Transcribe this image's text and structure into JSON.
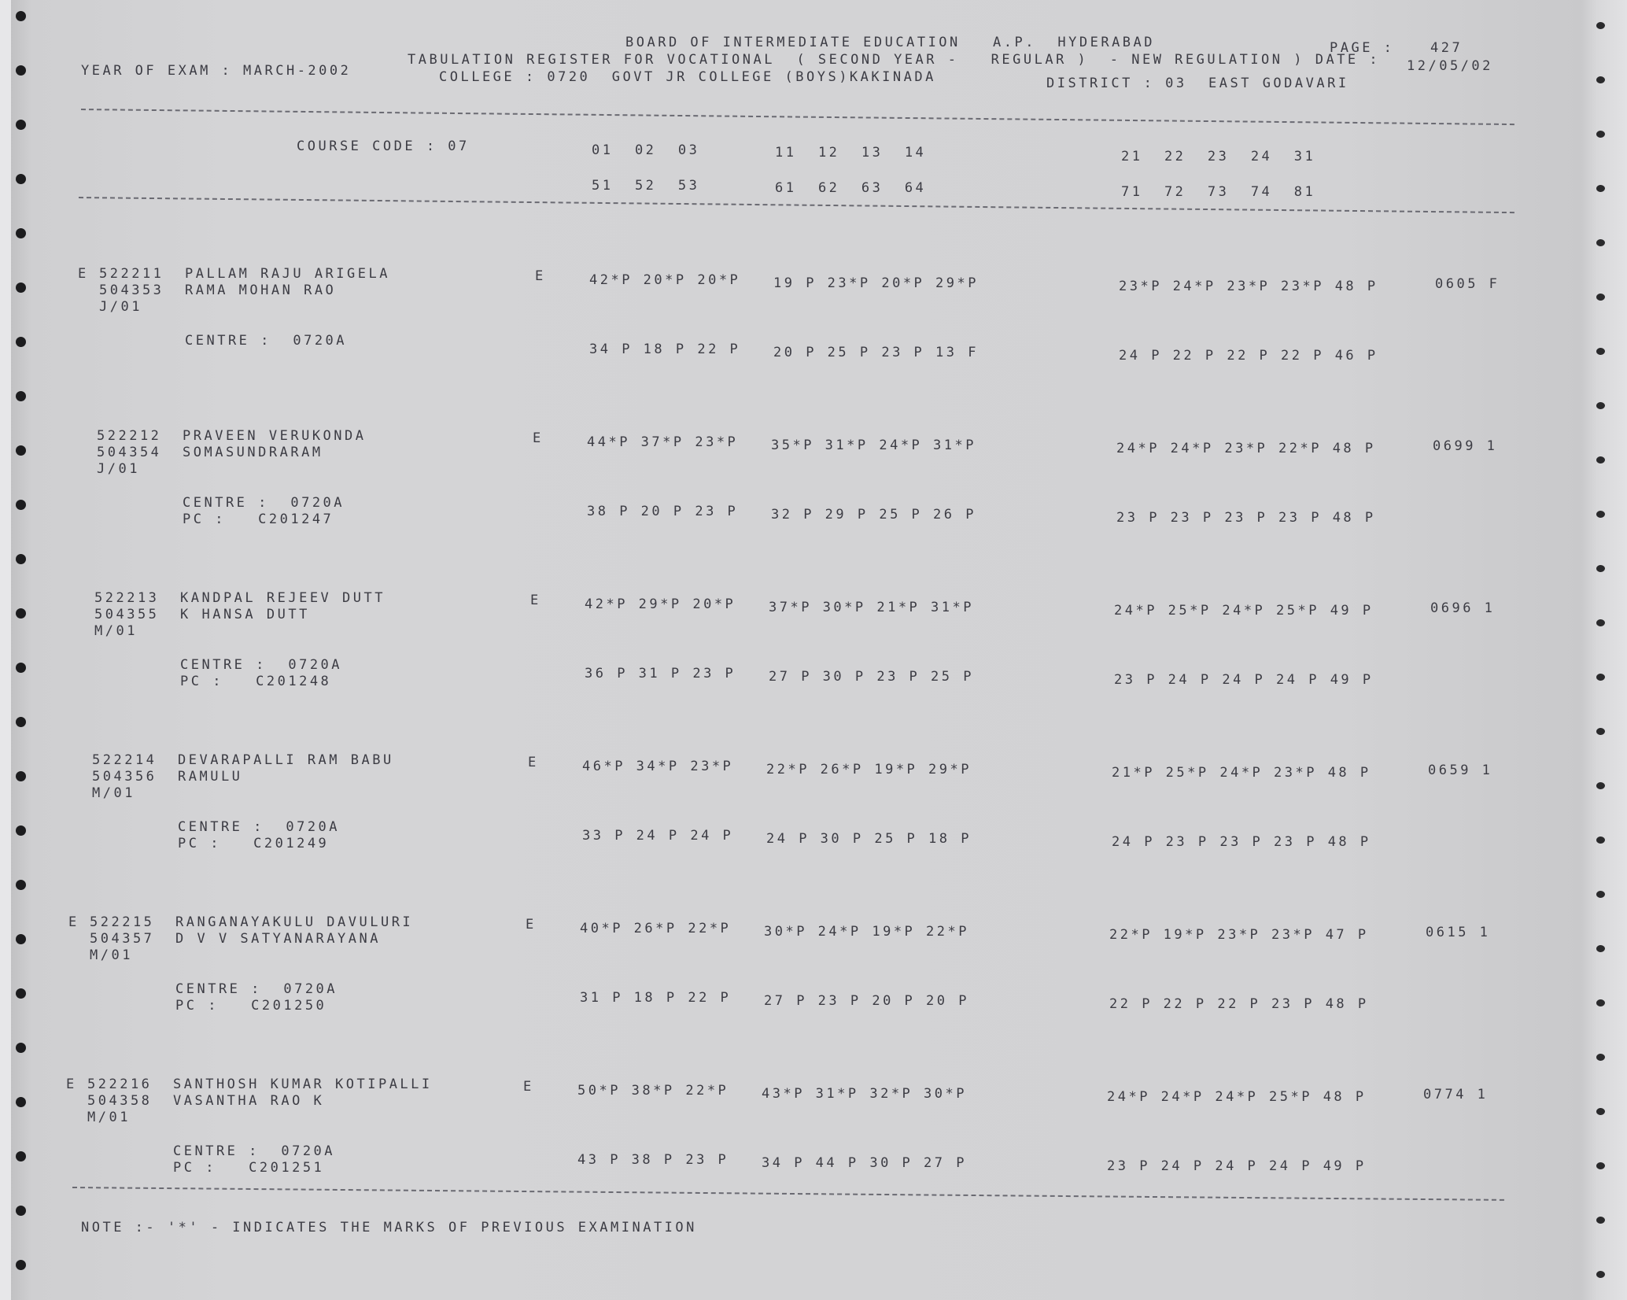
{
  "header": {
    "board": "BOARD OF INTERMEDIATE EDUCATION   A.P.  HYDERABAD",
    "page_label": "PAGE :",
    "page_number": "427",
    "register": "TABULATION REGISTER FOR VOCATIONAL  ( SECOND YEAR -   REGULAR )  - NEW REGULATION ) DATE :",
    "date": "12/05/02",
    "year_of_exam": "YEAR OF EXAM : MARCH-2002",
    "college": "COLLEGE : 0720  GOVT JR COLLEGE (BOYS)KAKINADA",
    "district": "DISTRICT : 03  EAST GODAVARI"
  },
  "columns": {
    "course_code": "COURSE CODE : 07",
    "row1": [
      "01  02  03",
      "11  12  13  14",
      "21  22  23  24  31"
    ],
    "row2": [
      "51  52  53",
      "61  62  63  64",
      "71  72  73  74  81"
    ]
  },
  "records": [
    {
      "flag": "E",
      "roll": "522211",
      "name": "PALLAM RAJU ARIGELA",
      "reg": "504353",
      "father": "RAMA MOHAN RAO",
      "group": "J/01",
      "centre": "CENTRE :  0720A",
      "pc": "",
      "medium": "E",
      "r1": [
        "42*P 20*P 20*P",
        "19 P 23*P 20*P 29*P",
        "23*P 24*P 23*P 23*P 48 P"
      ],
      "r2": [
        "34 P 18 P 22 P",
        "20 P 25 P 23 P 13 F",
        "24 P 22 P 22 P 22 P 46 P"
      ],
      "total": "0605 F"
    },
    {
      "flag": "",
      "roll": "522212",
      "name": "PRAVEEN VERUKONDA",
      "reg": "504354",
      "father": "SOMASUNDRARAM",
      "group": "J/01",
      "centre": "CENTRE :  0720A",
      "pc": "PC :   C201247",
      "medium": "E",
      "r1": [
        "44*P 37*P 23*P",
        "35*P 31*P 24*P 31*P",
        "24*P 24*P 23*P 22*P 48 P"
      ],
      "r2": [
        "38 P 20 P 23 P",
        "32 P 29 P 25 P 26 P",
        "23 P 23 P 23 P 23 P 48 P"
      ],
      "total": "0699 1"
    },
    {
      "flag": "",
      "roll": "522213",
      "name": "KANDPAL REJEEV DUTT",
      "reg": "504355",
      "father": "K HANSA DUTT",
      "group": "M/01",
      "centre": "CENTRE :  0720A",
      "pc": "PC :   C201248",
      "medium": "E",
      "r1": [
        "42*P 29*P 20*P",
        "37*P 30*P 21*P 31*P",
        "24*P 25*P 24*P 25*P 49 P"
      ],
      "r2": [
        "36 P 31 P 23 P",
        "27 P 30 P 23 P 25 P",
        "23 P 24 P 24 P 24 P 49 P"
      ],
      "total": "0696 1"
    },
    {
      "flag": "",
      "roll": "522214",
      "name": "DEVARAPALLI RAM BABU",
      "reg": "504356",
      "father": "RAMULU",
      "group": "M/01",
      "centre": "CENTRE :  0720A",
      "pc": "PC :   C201249",
      "medium": "E",
      "r1": [
        "46*P 34*P 23*P",
        "22*P 26*P 19*P 29*P",
        "21*P 25*P 24*P 23*P 48 P"
      ],
      "r2": [
        "33 P 24 P 24 P",
        "24 P 30 P 25 P 18 P",
        "24 P 23 P 23 P 23 P 48 P"
      ],
      "total": "0659 1"
    },
    {
      "flag": "E",
      "roll": "522215",
      "name": "RANGANAYAKULU DAVULURI",
      "reg": "504357",
      "father": "D V V SATYANARAYANA",
      "group": "M/01",
      "centre": "CENTRE :  0720A",
      "pc": "PC :   C201250",
      "medium": "E",
      "r1": [
        "40*P 26*P 22*P",
        "30*P 24*P 19*P 22*P",
        "22*P 19*P 23*P 23*P 47 P"
      ],
      "r2": [
        "31 P 18 P 22 P",
        "27 P 23 P 20 P 20 P",
        "22 P 22 P 22 P 23 P 48 P"
      ],
      "total": "0615 1"
    },
    {
      "flag": "E",
      "roll": "522216",
      "name": "SANTHOSH KUMAR KOTIPALLI",
      "reg": "504358",
      "father": "VASANTHA RAO K",
      "group": "M/01",
      "centre": "CENTRE :  0720A",
      "pc": "PC :   C201251",
      "medium": "E",
      "r1": [
        "50*P 38*P 22*P",
        "43*P 31*P 32*P 30*P",
        "24*P 24*P 24*P 25*P 48 P"
      ],
      "r2": [
        "43 P 38 P 23 P",
        "34 P 44 P 30 P 27 P",
        "23 P 24 P 24 P 24 P 49 P"
      ],
      "total": "0774 1"
    }
  ],
  "note": "NOTE :- '*' - INDICATES THE MARKS OF PREVIOUS EXAMINATION"
}
